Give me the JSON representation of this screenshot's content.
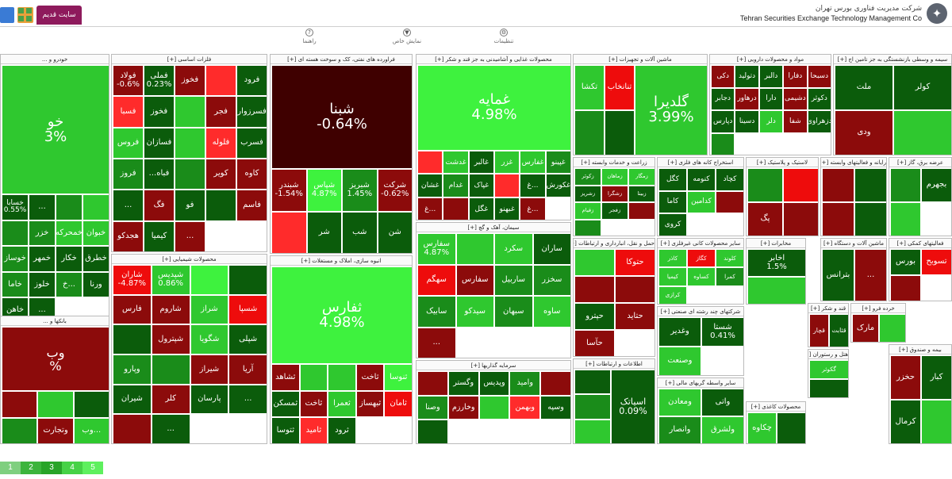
{
  "header": {
    "company_fa": "شرکت مدیریت فناوری بورس تهران",
    "company_en": "Tehran Securities Exchange Technology Management Co",
    "old_site_tab": "سایت قدیم",
    "toolbar": [
      {
        "label": "راهنما",
        "icon": "help-icon"
      },
      {
        "label": "نمایش خاص",
        "icon": "filter-icon"
      },
      {
        "label": "تنظیمات",
        "icon": "settings-icon"
      }
    ]
  },
  "legend": [
    "1",
    "2",
    "3",
    "4",
    "5"
  ],
  "colors": {
    "dg": "#3f0000",
    "dr": "#8c0b0b",
    "r": "#ee0c0c",
    "br": "#ff2b2b",
    "dgr": "#0b5c0b",
    "g": "#1a8c1a",
    "lg": "#2fc82f",
    "bg": "#3ef23e"
  },
  "sectors": [
    {
      "title": "خودرو و ...",
      "tiles": [
        {
          "name": "خو",
          "pct": "3%",
          "c": "lg",
          "big": 1
        },
        {
          "name": "خسابا",
          "pct": "0.55%",
          "c": "dgr",
          "big": 1
        },
        {
          "name": "...",
          "c": "dgr"
        },
        {
          "name": "",
          "c": "g"
        },
        {
          "name": "",
          "c": "lg"
        },
        {
          "name": "",
          "c": "g"
        },
        {
          "name": "خزر",
          "c": "g"
        },
        {
          "name": "خمحرکه",
          "c": "lg"
        },
        {
          "name": "خبوان",
          "c": "lg"
        },
        {
          "name": "خوساز",
          "c": "g"
        },
        {
          "name": "خمهر",
          "c": "dgr"
        },
        {
          "name": "خکار",
          "c": "dgr"
        },
        {
          "name": "خطرق",
          "c": "dgr"
        },
        {
          "name": "خاما",
          "c": "g"
        },
        {
          "name": "خلوز",
          "c": "dgr"
        },
        {
          "name": "خ...",
          "c": "g"
        },
        {
          "name": "ورنا",
          "c": "dgr"
        },
        {
          "name": "خاهن",
          "c": "dgr"
        },
        {
          "name": "...",
          "c": "dgr"
        }
      ]
    },
    {
      "title": "بانکها و ...",
      "tiles": [
        {
          "name": "وب",
          "pct": "%",
          "c": "dr",
          "big": 1
        },
        {
          "name": "",
          "c": "dr"
        },
        {
          "name": "",
          "c": "lg"
        },
        {
          "name": "",
          "c": "dgr"
        },
        {
          "name": "",
          "c": "g"
        },
        {
          "name": "وتجارت",
          "c": "dr"
        },
        {
          "name": "وب...",
          "c": "lg"
        }
      ]
    },
    {
      "title": "فلزات اساسی [+]",
      "tiles": [
        {
          "name": "فولاد",
          "pct": "-0.6%",
          "c": "dr"
        },
        {
          "name": "فملی",
          "pct": "0.23%",
          "c": "dgr"
        },
        {
          "name": "فخوز",
          "c": "dr"
        },
        {
          "name": "",
          "c": "br"
        },
        {
          "name": "فرود",
          "c": "dgr"
        },
        {
          "name": "فسبا",
          "c": "br"
        },
        {
          "name": "فخوز",
          "c": "dgr"
        },
        {
          "name": "",
          "c": "lg"
        },
        {
          "name": "فجر",
          "c": "dr"
        },
        {
          "name": "فسرزوار",
          "c": "dgr"
        },
        {
          "name": "فروس",
          "c": "lg"
        },
        {
          "name": "فسازان",
          "c": "dgr"
        },
        {
          "name": "",
          "c": "lg"
        },
        {
          "name": "فلوله",
          "c": "br"
        },
        {
          "name": "فسرب",
          "c": "dgr"
        },
        {
          "name": "فروز",
          "c": "g"
        },
        {
          "name": "...فباه",
          "c": "dgr"
        },
        {
          "name": "",
          "c": "g"
        },
        {
          "name": "کویر",
          "c": "dr"
        },
        {
          "name": "کاوه",
          "c": "dr"
        },
        {
          "name": "...",
          "c": "dgr"
        },
        {
          "name": "فگ",
          "c": "dr"
        },
        {
          "name": "فو",
          "c": "dgr"
        },
        {
          "name": "",
          "c": "dgr"
        },
        {
          "name": "فاسم",
          "c": "dr"
        },
        {
          "name": "هجدکو",
          "c": "dr"
        },
        {
          "name": "کیمیا",
          "c": "dgr"
        },
        {
          "name": "...",
          "c": "dr"
        }
      ]
    },
    {
      "title": "محصولات شیمیایی [+]",
      "tiles": [
        {
          "name": "شاران",
          "pct": "-4.87%",
          "c": "r"
        },
        {
          "name": "شپدیس",
          "pct": "0.86%",
          "c": "lg"
        },
        {
          "name": "",
          "c": "bg"
        },
        {
          "name": "",
          "c": "dgr"
        },
        {
          "name": "فارس",
          "c": "dr"
        },
        {
          "name": "شاروم",
          "c": "dr"
        },
        {
          "name": "شراز",
          "c": "lg"
        },
        {
          "name": "شسپا",
          "c": "r"
        },
        {
          "name": "",
          "c": "dgr"
        },
        {
          "name": "شپترول",
          "c": "dr"
        },
        {
          "name": "شگویا",
          "c": "lg"
        },
        {
          "name": "شپلی",
          "c": "dgr"
        },
        {
          "name": "وپارو",
          "c": "g"
        },
        {
          "name": "",
          "c": "g"
        },
        {
          "name": "شیراز",
          "c": "dr"
        },
        {
          "name": "آریا",
          "c": "dr"
        },
        {
          "name": "شیران",
          "c": "dgr"
        },
        {
          "name": "کلر",
          "c": "dr"
        },
        {
          "name": "پارسان",
          "c": "dgr"
        },
        {
          "name": "...",
          "c": "dgr"
        },
        {
          "name": "",
          "c": "dr"
        },
        {
          "name": "...",
          "c": "dgr"
        }
      ]
    },
    {
      "title": "فراورده های نفتی، کک و سوخت هسته ای [+]",
      "tiles": [
        {
          "name": "شبنا",
          "pct": "-0.64%",
          "c": "dg",
          "big": 1
        },
        {
          "name": "شبندر",
          "pct": "-1.54%",
          "c": "dr"
        },
        {
          "name": "شپاس",
          "pct": "4.87%",
          "c": "bg"
        },
        {
          "name": "شبریز",
          "pct": "1.45%",
          "c": "g"
        },
        {
          "name": "شرکت",
          "pct": "-0.62%",
          "c": "dr"
        },
        {
          "name": "",
          "c": "br"
        },
        {
          "name": "شر",
          "c": "dgr"
        },
        {
          "name": "شب",
          "c": "dgr"
        },
        {
          "name": "شن",
          "c": "dgr"
        }
      ]
    },
    {
      "title": "انبوه سازی، املاک و مستغلات [+]",
      "tiles": [
        {
          "name": "ثفارس",
          "pct": "4.98%",
          "c": "bg",
          "big": 1
        },
        {
          "name": "ثشاهد",
          "c": "dr"
        },
        {
          "name": "",
          "c": "lg"
        },
        {
          "name": "",
          "c": "lg"
        },
        {
          "name": "ثاخت",
          "c": "dr"
        },
        {
          "name": "ثنوسا",
          "c": "bg"
        },
        {
          "name": "ثمسکن",
          "c": "dgr"
        },
        {
          "name": "ثاخت",
          "c": "dr"
        },
        {
          "name": "ثعمرا",
          "c": "lg"
        },
        {
          "name": "ثبهساز",
          "c": "dr"
        },
        {
          "name": "ثامان",
          "c": "r"
        },
        {
          "name": "ثتوسا",
          "c": "dgr"
        },
        {
          "name": "ثامید",
          "c": "br"
        },
        {
          "name": "ثرود",
          "c": "dgr"
        }
      ]
    },
    {
      "title": "محصولات غذایی و آشامیدنی به جز قند و شکر [+]",
      "tiles": [
        {
          "name": "غمایه",
          "pct": "4.98%",
          "c": "bg",
          "big": 1
        },
        {
          "name": "",
          "c": "br"
        },
        {
          "name": "غدشت",
          "c": "lg"
        },
        {
          "name": "غالبر",
          "c": "dgr"
        },
        {
          "name": "غزر",
          "c": "lg"
        },
        {
          "name": "غفارس",
          "c": "lg"
        },
        {
          "name": "غپینو",
          "c": "g"
        },
        {
          "name": "غشان",
          "c": "dgr"
        },
        {
          "name": "غدام",
          "c": "g"
        },
        {
          "name": "غپاک",
          "c": "dgr"
        },
        {
          "name": "",
          "c": "br"
        },
        {
          "name": "غ...",
          "c": "dgr"
        },
        {
          "name": "غکورش",
          "c": "dgr"
        },
        {
          "name": "غ...",
          "c": "dr"
        },
        {
          "name": "",
          "c": "dr"
        },
        {
          "name": "غگل",
          "c": "dgr"
        },
        {
          "name": "غبهنو",
          "c": "dgr"
        },
        {
          "name": "غ...",
          "c": "dr"
        }
      ]
    },
    {
      "title": "سیمان، آهک و گچ [+]",
      "tiles": [
        {
          "name": "سفارس",
          "pct": "4.87%",
          "c": "lg"
        },
        {
          "name": "",
          "c": "lg"
        },
        {
          "name": "سکرد",
          "c": "lg"
        },
        {
          "name": "ساران",
          "c": "dgr"
        },
        {
          "name": "سهگم",
          "c": "r"
        },
        {
          "name": "سفارس",
          "c": "dr"
        },
        {
          "name": "ساربیل",
          "c": "g"
        },
        {
          "name": "سخزر",
          "c": "g"
        },
        {
          "name": "سابیک",
          "c": "g"
        },
        {
          "name": "سیدکو",
          "c": "lg"
        },
        {
          "name": "سبهان",
          "c": "g"
        },
        {
          "name": "ساوه",
          "c": "lg"
        },
        {
          "name": "...",
          "c": "dr"
        }
      ]
    },
    {
      "title": "سرمایه گذاریها [+]",
      "tiles": [
        {
          "name": "",
          "c": "dr"
        },
        {
          "name": "وگستر",
          "c": "dgr"
        },
        {
          "name": "وپدیس",
          "c": "dgr"
        },
        {
          "name": "وامید",
          "c": "g"
        },
        {
          "name": "",
          "c": "dr"
        },
        {
          "name": "وصنا",
          "c": "g"
        },
        {
          "name": "وخارزم",
          "c": "dr"
        },
        {
          "name": "",
          "c": "lg"
        },
        {
          "name": "وبهمن",
          "c": "br"
        },
        {
          "name": "وسپه",
          "c": "dgr"
        },
        {
          "name": "",
          "c": "dgr"
        }
      ]
    },
    {
      "title": "ماشین آلات و تجهیزات [+]",
      "tiles": [
        {
          "name": "گلدیرا",
          "pct": "3.99%",
          "c": "lg",
          "big": 1
        },
        {
          "name": "تکشا",
          "c": "lg"
        },
        {
          "name": "تنانخاب",
          "c": "r"
        },
        {
          "name": "",
          "c": "g"
        },
        {
          "name": "",
          "c": "dgr"
        }
      ]
    },
    {
      "title": "زراعت و خدمات وابسته [+]",
      "tiles": [
        {
          "name": "زکوثر",
          "c": "g"
        },
        {
          "name": "زماهان",
          "c": "lg"
        },
        {
          "name": "زمگار",
          "c": "lg"
        },
        {
          "name": "زشریز",
          "c": "dgr"
        },
        {
          "name": "زشگرا",
          "c": "dr"
        },
        {
          "name": "زبینا",
          "c": "dgr"
        },
        {
          "name": "زقیام",
          "c": "lg"
        },
        {
          "name": "زفجر",
          "c": "dgr"
        },
        {
          "name": "",
          "c": "dr"
        },
        {
          "name": "",
          "c": "g"
        }
      ]
    },
    {
      "title": "حمل و نقل، انبارداری و ارتباطات [+]",
      "tiles": [
        {
          "name": "",
          "c": "lg"
        },
        {
          "name": "حتوکا",
          "c": "r"
        },
        {
          "name": "",
          "c": "dr"
        },
        {
          "name": "",
          "c": "dr"
        },
        {
          "name": "حپترو",
          "c": "dgr"
        },
        {
          "name": "حتاید",
          "c": "dr"
        },
        {
          "name": "حآسا",
          "c": "dr"
        }
      ]
    },
    {
      "title": "اطلاعات و ارتباطات [+]",
      "tiles": [
        {
          "name": "اسیاتک",
          "pct": "0.09%",
          "c": "dgr",
          "big": 1
        },
        {
          "name": "",
          "c": "dgr"
        },
        {
          "name": "",
          "c": "g"
        },
        {
          "name": "",
          "c": "lg"
        }
      ]
    },
    {
      "title": "مواد و محصولات دارویی [+]",
      "tiles": [
        {
          "name": "دکی",
          "c": "dr"
        },
        {
          "name": "دتولید",
          "c": "dgr"
        },
        {
          "name": "دالبر",
          "c": "dgr"
        },
        {
          "name": "دفارا",
          "c": "dr"
        },
        {
          "name": "دسبحا",
          "c": "dr"
        },
        {
          "name": "دجابر",
          "c": "dgr"
        },
        {
          "name": "درهاور",
          "c": "dr"
        },
        {
          "name": "دارا",
          "c": "dgr"
        },
        {
          "name": "دشیمی",
          "c": "dr"
        },
        {
          "name": "دکوثر",
          "c": "dgr"
        },
        {
          "name": "دپارس",
          "c": "dgr"
        },
        {
          "name": "دسینا",
          "c": "dgr"
        },
        {
          "name": "دلر",
          "c": "lg"
        },
        {
          "name": "شفا",
          "c": "dr"
        },
        {
          "name": "دزهراوی",
          "c": "dgr"
        },
        {
          "name": "",
          "c": "g"
        }
      ]
    },
    {
      "title": "استخراج کانه های فلزی [+]",
      "tiles": [
        {
          "name": "کگل",
          "c": "dgr"
        },
        {
          "name": "کنومه",
          "c": "dgr"
        },
        {
          "name": "کچاد",
          "c": "dgr"
        },
        {
          "name": "کاما",
          "c": "dgr"
        },
        {
          "name": "کدامین",
          "c": "lg"
        },
        {
          "name": "",
          "c": "dr"
        },
        {
          "name": "کروی",
          "c": "dgr"
        }
      ]
    },
    {
      "title": "سایر محصولات کانی غیرفلزی [+]",
      "tiles": [
        {
          "name": "کاذر",
          "c": "lg"
        },
        {
          "name": "کگاز",
          "c": "r"
        },
        {
          "name": "کلوند",
          "c": "lg"
        },
        {
          "name": "کیمیا",
          "c": "lg"
        },
        {
          "name": "کساوه",
          "c": "lg"
        },
        {
          "name": "کمرا",
          "c": "g"
        },
        {
          "name": "کرازی",
          "c": "lg"
        }
      ]
    },
    {
      "title": "شرکتهای چند رشته ای صنعتی [+]",
      "tiles": [
        {
          "name": "وغدیر",
          "c": "dgr"
        },
        {
          "name": "شستا",
          "pct": "0.41%",
          "c": "dgr"
        },
        {
          "name": "وصنعت",
          "c": "lg"
        }
      ]
    },
    {
      "title": "سایر واسطه گریهای مالی [+]",
      "tiles": [
        {
          "name": "ومعادن",
          "c": "lg"
        },
        {
          "name": "واتی",
          "c": "dgr"
        },
        {
          "name": "وانصار",
          "c": "g"
        },
        {
          "name": "ولشرق",
          "c": "lg"
        }
      ]
    },
    {
      "title": "لاستیک و پلاستیک [+]",
      "tiles": [
        {
          "name": "",
          "c": "g"
        },
        {
          "name": "",
          "c": "r"
        },
        {
          "name": "پگ",
          "c": "dr"
        },
        {
          "name": "",
          "c": "dr"
        }
      ]
    },
    {
      "title": "محصولات کاغذی [+]",
      "tiles": [
        {
          "name": "چکاوه",
          "c": "lg"
        },
        {
          "name": "",
          "c": "dgr"
        }
      ]
    },
    {
      "title": "هتل و رستوران [+]",
      "tiles": [
        {
          "name": "گکوثر",
          "c": "lg"
        },
        {
          "name": "",
          "c": "dgr"
        }
      ]
    },
    {
      "title": "مخابرات [+]",
      "tiles": [
        {
          "name": "اخابر",
          "pct": "1.5%",
          "c": "dgr"
        },
        {
          "name": "",
          "c": "lg"
        }
      ]
    },
    {
      "title": "رایانه و فعالیتهای وابسته [+]",
      "tiles": [
        {
          "name": "",
          "c": "dr"
        },
        {
          "name": "",
          "c": "dgr"
        },
        {
          "name": "",
          "c": "dr"
        },
        {
          "name": "",
          "c": "dgr"
        }
      ]
    },
    {
      "title": "عرضه برق، گاز [+]",
      "tiles": [
        {
          "name": "",
          "c": "g"
        },
        {
          "name": "بجهرم",
          "c": "dgr"
        },
        {
          "name": "",
          "c": "lg"
        }
      ]
    },
    {
      "title": "ماشین آلات و دستگاه [+]",
      "tiles": [
        {
          "name": "بترانس",
          "c": "dgr"
        },
        {
          "name": "...",
          "c": "dr"
        }
      ]
    },
    {
      "title": "فعالیتهای کمکی [+]",
      "tiles": [
        {
          "name": "بورس",
          "c": "dgr"
        },
        {
          "name": "تسوبح",
          "c": "r"
        },
        {
          "name": "",
          "c": "dr"
        }
      ]
    },
    {
      "title": "قند و شکر [+]",
      "tiles": [
        {
          "name": "قچار",
          "c": "dr"
        },
        {
          "name": "قثابت",
          "c": "dgr"
        }
      ]
    },
    {
      "title": "خرده فرو [+]",
      "tiles": [
        {
          "name": "مارک",
          "c": "dr"
        },
        {
          "name": "",
          "c": "lg"
        }
      ]
    },
    {
      "title": "سیمه و وسطی بازنشستگی به جز تامین اج [+]",
      "tiles": [
        {
          "name": "ملت",
          "c": "dgr"
        },
        {
          "name": "کولر",
          "c": "dgr"
        },
        {
          "name": "ودی",
          "c": "dr"
        },
        {
          "name": "",
          "c": "lg"
        }
      ]
    },
    {
      "title": "بیمه و صندوق [+]",
      "tiles": [
        {
          "name": "حخزر",
          "c": "dr"
        },
        {
          "name": "کبار",
          "c": "dgr"
        },
        {
          "name": "کرمال",
          "c": "dgr"
        },
        {
          "name": "",
          "c": "lg"
        }
      ]
    }
  ]
}
